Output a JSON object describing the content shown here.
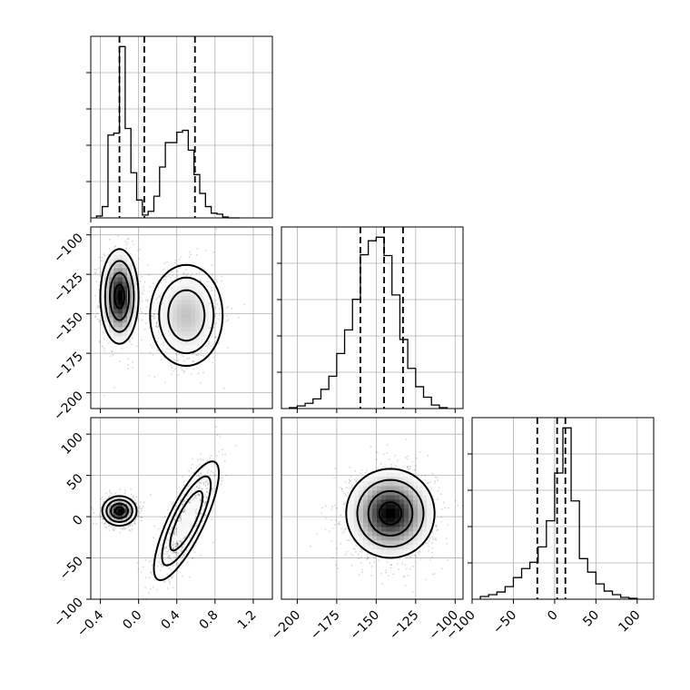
{
  "chart_data": {
    "type": "scatter",
    "subtype": "corner-plot",
    "title": "",
    "parameters": [
      {
        "label": "",
        "range": [
          -0.5,
          1.4
        ],
        "ticks": [
          -0.4,
          0.0,
          0.4,
          0.8,
          1.2
        ],
        "tick_labels": [
          "−0.4",
          "0.0",
          "0.4",
          "0.8",
          "1.2"
        ]
      },
      {
        "label": "",
        "range": [
          -210,
          -95
        ],
        "ticks": [
          -200,
          -175,
          -150,
          -125,
          -100
        ],
        "tick_labels": [
          "−200",
          "−175",
          "−150",
          "−125",
          "−100"
        ]
      },
      {
        "label": "",
        "range": [
          -100,
          120
        ],
        "ticks": [
          -100,
          -50,
          0,
          50,
          100
        ],
        "tick_labels": [
          "−100",
          "−50",
          "0",
          "50",
          "100"
        ]
      }
    ],
    "histograms": [
      {
        "param": 0,
        "bin_edges": [
          -0.44,
          -0.38,
          -0.32,
          -0.26,
          -0.2,
          -0.14,
          -0.08,
          -0.02,
          0.04,
          0.1,
          0.16,
          0.22,
          0.28,
          0.34,
          0.4,
          0.46,
          0.52,
          0.58,
          0.64,
          0.7,
          0.76,
          0.82,
          0.88,
          0.94,
          1.0,
          1.06
        ],
        "counts": [
          2,
          12,
          88,
          90,
          182,
          95,
          48,
          19,
          3,
          7,
          23,
          54,
          80,
          80,
          91,
          93,
          72,
          46,
          26,
          12,
          5,
          4,
          1,
          0,
          0
        ],
        "quantiles": [
          -0.2,
          0.06,
          0.59
        ]
      },
      {
        "param": 1,
        "bin_edges": [
          -205,
          -200,
          -195,
          -190,
          -185,
          -180,
          -175,
          -170,
          -165,
          -160,
          -155,
          -150,
          -145,
          -140,
          -135,
          -130,
          -125,
          -120,
          -115,
          -110,
          -105
        ],
        "counts": [
          1,
          3,
          6,
          11,
          22,
          37,
          63,
          90,
          125,
          176,
          192,
          196,
          175,
          130,
          79,
          46,
          25,
          13,
          4,
          1
        ],
        "quantiles": [
          -160,
          -145,
          -133
        ]
      },
      {
        "param": 2,
        "bin_edges": [
          -90,
          -80,
          -70,
          -60,
          -50,
          -40,
          -30,
          -20,
          -10,
          0,
          10,
          20,
          30,
          40,
          50,
          60,
          70,
          80,
          90,
          100
        ],
        "counts": [
          3,
          5,
          8,
          14,
          24,
          34,
          41,
          58,
          87,
          140,
          190,
          109,
          45,
          30,
          17,
          9,
          5,
          2,
          1
        ],
        "quantiles": [
          -21,
          3,
          13
        ]
      }
    ],
    "correlations": [
      {
        "params": [
          0,
          1
        ],
        "modes": [
          {
            "center": [
              -0.2,
              -139
            ],
            "spread": [
              0.1,
              15
            ],
            "rho": 0.0,
            "weight": 0.55
          },
          {
            "center": [
              0.5,
              -151
            ],
            "spread": [
              0.19,
              16
            ],
            "rho": 0.0,
            "weight": 0.45
          }
        ]
      },
      {
        "params": [
          0,
          2
        ],
        "modes": [
          {
            "center": [
              -0.2,
              7
            ],
            "spread": [
              0.09,
              9
            ],
            "rho": 0.0,
            "weight": 0.55
          },
          {
            "center": [
              0.5,
              -5
            ],
            "spread": [
              0.17,
              36
            ],
            "rho": 0.8,
            "weight": 0.45
          }
        ]
      },
      {
        "params": [
          1,
          2
        ],
        "modes": [
          {
            "center": [
              -141,
              4
            ],
            "spread": [
              14,
              27
            ],
            "rho": 0.0,
            "weight": 1.0
          }
        ]
      }
    ],
    "grid": true,
    "legend": "none",
    "colors": {
      "line": "#000000",
      "grid": "#b0b0b0",
      "density_dark": "#000000",
      "density_light": "#f2f2f2"
    }
  }
}
